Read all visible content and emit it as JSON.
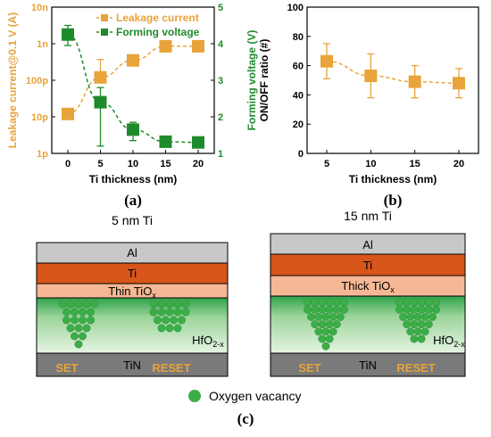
{
  "panels": {
    "a": {
      "label": "(a)"
    },
    "b": {
      "label": "(b)"
    },
    "c": {
      "label": "(c)",
      "left": {
        "title": "5 nm Ti",
        "layers": {
          "al": "Al",
          "ti": "Ti",
          "tiox": "Thin TiO",
          "tiox_sub": "x",
          "hfo": "HfO",
          "hfo_sub": "2-x",
          "tin": "TiN"
        },
        "set": "SET",
        "reset": "RESET"
      },
      "right": {
        "title": "15 nm Ti",
        "layers": {
          "al": "Al",
          "ti": "Ti",
          "tiox": "Thick TiO",
          "tiox_sub": "x",
          "hfo": "HfO",
          "hfo_sub": "2-x",
          "tin": "TiN"
        },
        "set": "SET",
        "reset": "RESET"
      },
      "legend": "Oxygen vacancy"
    }
  },
  "colors": {
    "orange": "#E8A33A",
    "green": "#1F8A2A",
    "al": "#C8C8C8",
    "ti": "#D8561A",
    "tiox": "#F5B795",
    "hfo_top": "#2FA34A",
    "hfo_bottom": "#E2F2DE",
    "tin": "#7A7A7A",
    "vacancy": "#3BAE48",
    "label_orange": "#E8A33A"
  },
  "chart_data": [
    {
      "type": "scatter",
      "x": [
        0,
        5,
        10,
        15,
        20
      ],
      "xlabel": "Ti thickness (nm)",
      "xticks": [
        "0",
        "5",
        "10",
        "15",
        "20"
      ],
      "series": [
        {
          "name": "Leakage current",
          "axis": "left",
          "values": [
            1.2e-11,
            1.2e-10,
            3.5e-10,
            8.5e-10,
            8.5e-10
          ],
          "err_low": [
            null,
            2e-12,
            null,
            null,
            null
          ],
          "err_high": [
            null,
            2.5e-10,
            null,
            null,
            null
          ]
        },
        {
          "name": "Forming voltage",
          "axis": "right",
          "values": [
            4.25,
            2.4,
            1.65,
            1.32,
            1.3
          ],
          "err_low": [
            0.3,
            1.2,
            0.3,
            0.05,
            0.05
          ],
          "err_high": [
            0.25,
            0.4,
            0.2,
            0.05,
            0.05
          ]
        }
      ],
      "ylabel_left": "Leakage current@0.1 V (A)",
      "yscale_left": "log",
      "ylim_left": [
        1e-12,
        1e-08
      ],
      "yticks_left": [
        "1p",
        "10p",
        "100p",
        "1n",
        "10n"
      ],
      "ylabel_right": "Forming voltage (V)",
      "ylim_right": [
        1,
        5
      ],
      "yticks_right": [
        "1",
        "2",
        "3",
        "4",
        "5"
      ],
      "legend_position": "top-right"
    },
    {
      "type": "scatter",
      "x": [
        5,
        10,
        15,
        20
      ],
      "xlabel": "Ti thickness (nm)",
      "xticks": [
        "5",
        "10",
        "15",
        "20"
      ],
      "series": [
        {
          "name": "",
          "values": [
            63,
            53,
            49,
            48
          ],
          "err_low": [
            12,
            15,
            11,
            10
          ],
          "err_high": [
            12,
            15,
            11,
            10
          ]
        }
      ],
      "ylabel": "ON/OFF ratio (#)",
      "ylim": [
        0,
        100
      ],
      "yticks": [
        "0",
        "20",
        "40",
        "60",
        "80",
        "100"
      ]
    }
  ]
}
